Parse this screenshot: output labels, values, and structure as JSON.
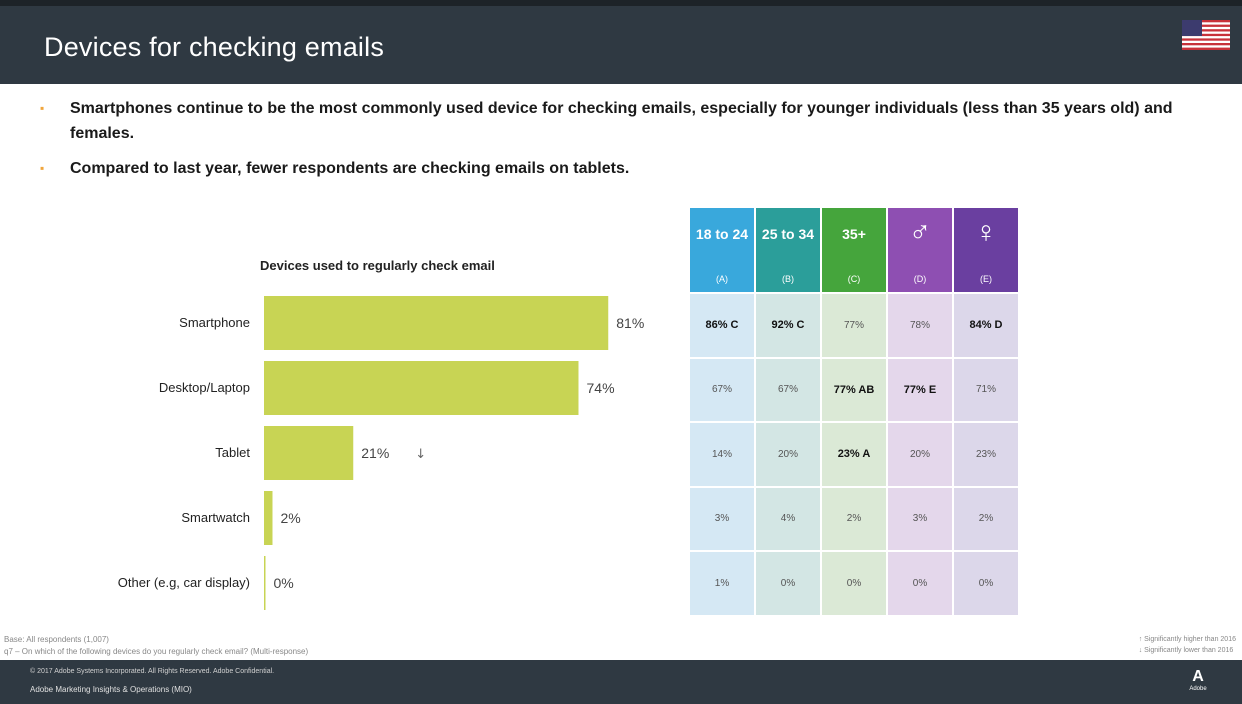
{
  "header": {
    "title": "Devices for checking emails",
    "flag_icon": "us-flag-icon"
  },
  "bullets": [
    "Smartphones continue to be the most commonly used device for checking emails, especially for younger individuals (less than 35 years old) and females.",
    "Compared to last year, fewer respondents are checking emails on tablets."
  ],
  "chart_data": {
    "type": "bar",
    "orientation": "horizontal",
    "title": "Devices used to regularly check email",
    "categories": [
      "Smartphone",
      "Desktop/Laptop",
      "Tablet",
      "Smartwatch",
      "Other (e.g, car display)"
    ],
    "values": [
      81,
      74,
      21,
      2,
      0
    ],
    "value_labels": [
      "81%",
      "74%",
      "21%",
      "2%",
      "0%"
    ],
    "annotations": [
      "",
      "",
      "↓",
      "",
      ""
    ],
    "xlim": [
      0,
      100
    ],
    "color": "#c8d454"
  },
  "table": {
    "columns": [
      {
        "label": "18 to 24",
        "code": "(A)",
        "color": "#39a8dc",
        "cell_bg": "#d5e8f4"
      },
      {
        "label": "25 to 34",
        "code": "(B)",
        "color": "#2b9e9a",
        "cell_bg": "#d3e6e4"
      },
      {
        "label": "35+",
        "code": "(C)",
        "color": "#45a53c",
        "cell_bg": "#dbe9d6"
      },
      {
        "label": "♂",
        "code": "(D)",
        "color": "#8e4fb2",
        "cell_bg": "#e4d7eb"
      },
      {
        "label": "♀",
        "code": "(E)",
        "color": "#6a3fa0",
        "cell_bg": "#dcd7ea"
      }
    ],
    "rows": [
      [
        "86% C",
        "92% C",
        "77%",
        "78%",
        "84% D"
      ],
      [
        "67%",
        "67%",
        "77% AB",
        "77% E",
        "71%"
      ],
      [
        "14%",
        "20%",
        "23% A",
        "20%",
        "23%"
      ],
      [
        "3%",
        "4%",
        "2%",
        "3%",
        "2%"
      ],
      [
        "1%",
        "0%",
        "0%",
        "0%",
        "0%"
      ]
    ]
  },
  "footnotes": {
    "base": "Base: All respondents (1,007)",
    "question": "q7 – On which of the following devices do you regularly check email? (Multi-response)",
    "sig_higher": "↑  Significantly higher than 2016",
    "sig_lower": "↓  Significantly lower than 2016"
  },
  "footer": {
    "copyright": "© 2017 Adobe Systems Incorporated. All Rights Reserved. Adobe Confidential.",
    "dept": "Adobe Marketing Insights & Operations (MIO)",
    "logo_text": "Adobe"
  },
  "colors": {
    "header_bg": "#2f3942",
    "bullet": "#f0a53c",
    "bar": "#c8d454"
  }
}
